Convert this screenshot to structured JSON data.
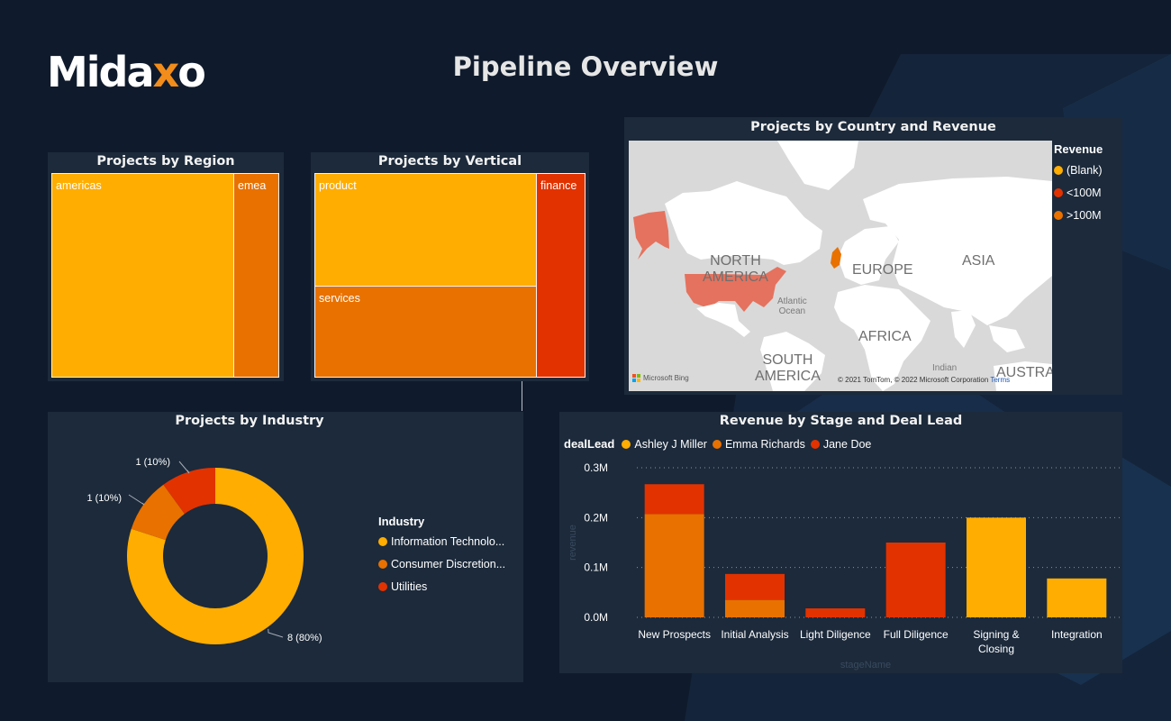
{
  "header": {
    "logo_main": "Mida",
    "logo_x": "x",
    "logo_end": "o",
    "title": "Pipeline Overview"
  },
  "colors": {
    "yellow": "#ffad00",
    "orange": "#e87100",
    "red": "#e23200",
    "panel": "#1c2a3b",
    "background": "#0f1b2c"
  },
  "region": {
    "title": "Projects by Region",
    "tiles": [
      {
        "label": "americas",
        "color": "#ffad00"
      },
      {
        "label": "emea",
        "color": "#e87100"
      }
    ]
  },
  "vertical": {
    "title": "Projects by Vertical",
    "tiles": [
      {
        "label": "product",
        "color": "#ffad00"
      },
      {
        "label": "services",
        "color": "#e87100"
      },
      {
        "label": "finance",
        "color": "#e23200"
      }
    ]
  },
  "map": {
    "title": "Projects by Country and Revenue",
    "labels": {
      "north_america": "NORTH\nAMERICA",
      "europe": "EUROPE",
      "asia": "ASIA",
      "africa": "AFRICA",
      "south_america": "SOUTH\nAMERICA",
      "australia": "AUSTRA",
      "atlantic": "Atlantic\nOcean",
      "indian": "Indian"
    },
    "attribution": "© 2021 TomTom, © 2022 Microsoft Corporation",
    "terms": "Terms",
    "bing": "Microsoft Bing",
    "legend": {
      "title": "Revenue",
      "items": [
        {
          "label": "(Blank)",
          "color": "#ffad00"
        },
        {
          "label": "<100M",
          "color": "#e23200"
        },
        {
          "label": ">100M",
          "color": "#e87100"
        }
      ]
    }
  },
  "industry": {
    "title": "Projects by Industry",
    "legend_title": "Industry",
    "legend": [
      {
        "label": "Information Technolo...",
        "color": "#ffad00"
      },
      {
        "label": "Consumer Discretion...",
        "color": "#e87100"
      },
      {
        "label": "Utilities",
        "color": "#e23200"
      }
    ],
    "slice_labels": [
      "8 (80%)",
      "1 (10%)",
      "1 (10%)"
    ]
  },
  "stage": {
    "title": "Revenue by Stage and Deal Lead",
    "legend_title": "dealLead",
    "xlabel": "stageName",
    "ylabel": "revenue"
  },
  "chart_data": [
    {
      "type": "pie",
      "title": "Projects by Industry",
      "categories": [
        "Information Technolo...",
        "Consumer Discretion...",
        "Utilities"
      ],
      "values": [
        8,
        1,
        1
      ],
      "colors": [
        "#ffad00",
        "#e87100",
        "#e23200"
      ]
    },
    {
      "type": "bar",
      "stacked": true,
      "title": "Revenue by Stage and Deal Lead",
      "xlabel": "stageName",
      "ylabel": "revenue",
      "categories": [
        "New Prospects",
        "Initial Analysis",
        "Light Diligence",
        "Full Diligence",
        "Signing & Closing",
        "Integration"
      ],
      "category_lines": [
        [
          "New Prospects"
        ],
        [
          "Initial Analysis"
        ],
        [
          "Light Diligence"
        ],
        [
          "Full Diligence"
        ],
        [
          "Signing &",
          "Closing"
        ],
        [
          "Integration"
        ]
      ],
      "series": [
        {
          "name": "Ashley J Miller",
          "color": "#ffad00",
          "values": [
            0,
            0,
            0,
            0,
            200000,
            78000
          ]
        },
        {
          "name": "Emma Richards",
          "color": "#e87100",
          "values": [
            207000,
            35000,
            0,
            0,
            0,
            0
          ]
        },
        {
          "name": "Jane Doe",
          "color": "#e23200",
          "values": [
            60000,
            52000,
            18000,
            150000,
            0,
            0
          ]
        }
      ],
      "ylim": [
        0,
        300000
      ],
      "yticks": [
        0,
        100000,
        200000,
        300000
      ],
      "ytick_labels": [
        "0.0M",
        "0.1M",
        "0.2M",
        "0.3M"
      ],
      "grid": true,
      "legend_position": "top-left"
    }
  ]
}
